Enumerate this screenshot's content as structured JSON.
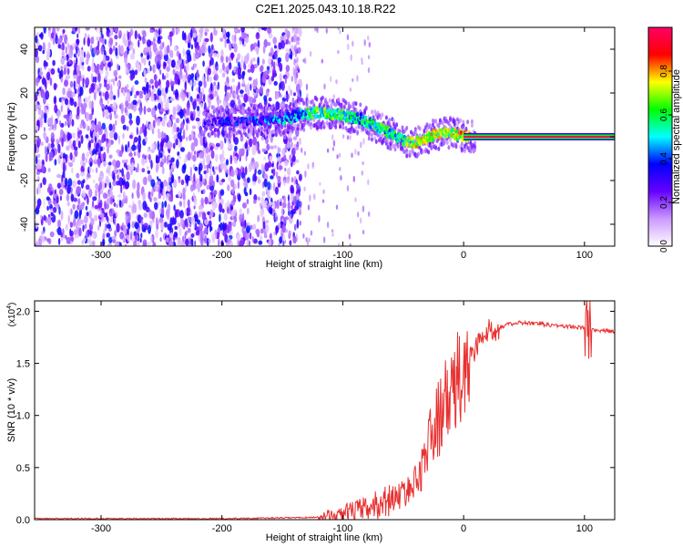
{
  "title": "C2E1.2025.043.10.18.R22",
  "chart_data": [
    {
      "type": "heatmap",
      "xlabel": "Height of straight line (km)",
      "ylabel": "Frequency (Hz)",
      "xlim": [
        -355,
        125
      ],
      "ylim": [
        -50,
        50
      ],
      "xticks": [
        -300,
        -200,
        -100,
        0,
        100
      ],
      "yticks": [
        -40,
        -20,
        0,
        20,
        40
      ],
      "colorbar": {
        "label": "Normalized spectral amplitude",
        "range": [
          0,
          1
        ],
        "ticks": [
          "0.0",
          "0.2",
          "0.4",
          "0.6",
          "0.8"
        ],
        "tick_values": [
          0.0,
          0.2,
          0.4,
          0.6,
          0.8
        ],
        "colors": [
          "#ffffff",
          "#cc99ff",
          "#6600ff",
          "#0000ff",
          "#00ffff",
          "#00ff00",
          "#ffff00",
          "#ff0000",
          "#ff0066"
        ]
      },
      "ridge": {
        "x": [
          -210,
          -180,
          -150,
          -135,
          -120,
          -100,
          -85,
          -70,
          -55,
          -45,
          -35,
          -25,
          -15,
          -5,
          0,
          10,
          40,
          80,
          125
        ],
        "y": [
          7,
          7,
          8,
          10,
          11,
          10,
          8,
          4,
          0,
          -3,
          -2,
          1,
          2,
          1,
          0,
          0,
          0,
          0,
          0
        ],
        "amplitude": [
          0.35,
          0.4,
          0.5,
          0.55,
          0.7,
          0.65,
          0.6,
          0.65,
          0.6,
          0.75,
          0.8,
          0.8,
          0.75,
          0.8,
          0.85,
          0.95,
          0.95,
          0.95,
          0.95
        ]
      },
      "noise_region_x": [
        -355,
        -145
      ]
    },
    {
      "type": "line",
      "xlabel": "Height of straight line (km)",
      "ylabel": "SNR (10 * v/v)",
      "scale_label": "(x10",
      "scale_exp": "4",
      "scale_close": ")",
      "xlim": [
        -355,
        125
      ],
      "ylim": [
        0,
        2.1
      ],
      "xticks": [
        -300,
        -200,
        -100,
        0,
        100
      ],
      "yticks": [
        "0.0",
        "0.5",
        "1.0",
        "1.5",
        "2.0"
      ],
      "ytick_values": [
        0.0,
        0.5,
        1.0,
        1.5,
        2.0
      ],
      "series": [
        {
          "color": "#e83030",
          "x": [
            -355,
            -200,
            -130,
            -110,
            -100,
            -90,
            -80,
            -70,
            -60,
            -50,
            -45,
            -40,
            -35,
            -30,
            -25,
            -20,
            -15,
            -10,
            -5,
            0,
            5,
            10,
            15,
            20,
            30,
            40,
            50,
            60,
            70,
            80,
            90,
            100,
            105,
            110,
            120,
            125
          ],
          "y": [
            0.01,
            0.01,
            0.02,
            0.03,
            0.05,
            0.08,
            0.1,
            0.15,
            0.2,
            0.25,
            0.3,
            0.35,
            0.5,
            0.7,
            0.85,
            1.0,
            1.1,
            1.2,
            1.3,
            1.4,
            1.55,
            1.65,
            1.75,
            1.8,
            1.85,
            1.88,
            1.89,
            1.88,
            1.87,
            1.86,
            1.85,
            1.84,
            1.83,
            1.82,
            1.81,
            1.8
          ]
        }
      ]
    }
  ]
}
